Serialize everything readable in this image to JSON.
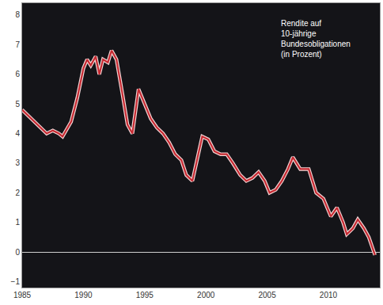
{
  "chart_data": {
    "type": "line",
    "annotation": "Rendite auf\n10-jährige\nBundesobligationen\n(in Prozent)",
    "x": [
      1985.0,
      1985.5,
      1986.0,
      1986.5,
      1987.0,
      1987.5,
      1988.0,
      1988.3,
      1988.7,
      1989.0,
      1989.5,
      1990.0,
      1990.3,
      1990.6,
      1991.0,
      1991.3,
      1991.6,
      1992.0,
      1992.3,
      1992.7,
      1993.2,
      1993.6,
      1994.0,
      1994.5,
      1995.0,
      1995.5,
      1996.0,
      1996.5,
      1997.0,
      1997.5,
      1998.0,
      1998.4,
      1998.9,
      1999.3,
      1999.7,
      2000.2,
      2000.7,
      2001.2,
      2001.7,
      2002.2,
      2002.8,
      2003.3,
      2003.8,
      2004.3,
      2004.8,
      2005.2,
      2005.7,
      2006.2,
      2006.7,
      2007.1,
      2007.7,
      2008.4,
      2009.0,
      2009.6,
      2010.2,
      2010.7,
      2011.2,
      2011.5,
      2012.0,
      2012.4,
      2012.9,
      2013.3,
      2013.8
    ],
    "values": [
      4.8,
      4.6,
      4.4,
      4.2,
      4.0,
      4.1,
      4.0,
      3.9,
      4.2,
      4.4,
      5.2,
      6.2,
      6.5,
      6.3,
      6.6,
      6.0,
      6.5,
      6.4,
      6.8,
      6.5,
      5.3,
      4.3,
      4.0,
      5.5,
      5.0,
      4.5,
      4.2,
      4.0,
      3.7,
      3.3,
      3.1,
      2.6,
      2.4,
      3.2,
      3.9,
      3.8,
      3.4,
      3.3,
      3.3,
      3.0,
      2.6,
      2.4,
      2.5,
      2.7,
      2.4,
      2.0,
      2.1,
      2.4,
      2.8,
      3.2,
      2.8,
      2.8,
      2.0,
      1.8,
      1.2,
      1.5,
      1.0,
      0.6,
      0.8,
      1.1,
      0.8,
      0.5,
      -0.1
    ],
    "color": "#c62a32",
    "xlim": [
      1985,
      2014.2
    ],
    "xticks": [
      1985,
      1990,
      1995,
      2000,
      2005,
      2010
    ],
    "ylim": [
      -1.2,
      8.4
    ],
    "yticks": [
      -1,
      0,
      1,
      2,
      3,
      4,
      5,
      6,
      7,
      8
    ],
    "grid": false
  }
}
